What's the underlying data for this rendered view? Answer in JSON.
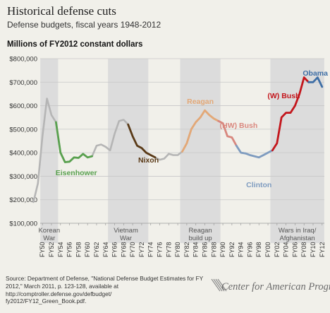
{
  "header": {
    "title": "Historical defense cuts",
    "subtitle": "Defense budgets, fiscal years 1948-2012",
    "units": "Millions of FY2012 constant dollars"
  },
  "footer": {
    "source": "Source: Department of Defense, \"National Defense Budget Estimates for FY 2012,\" March 2011, p. 123-128, available at http://comptroller.defense.gov/defbudget/",
    "source_url_tail": "fy2012/FY12_Green_Book.pdf.",
    "logo": "Center for American Progress"
  },
  "colors": {
    "background": "#f1f0ea",
    "shade": "#dcdcdc",
    "base_line": "#b5b5b5",
    "eisenhower": "#59a14f",
    "nixon": "#5a3a17",
    "reagan": "#e3a877",
    "hw_bush": "#d9877e",
    "clinton": "#7f9cc0",
    "w_bush": "#c4161c",
    "obama": "#3f6fa6"
  },
  "chart_data": {
    "type": "line",
    "title": "Historical defense cuts",
    "subtitle": "Defense budgets, fiscal years 1948-2012",
    "ylabel": "Millions of FY2012 constant dollars",
    "ylim": [
      100000,
      800000
    ],
    "yticks": [
      "$100,000",
      "$200,000",
      "$300,000",
      "$400,000",
      "$500,000",
      "$600,000",
      "$700,000",
      "$800,000"
    ],
    "ytick_values": [
      100000,
      200000,
      300000,
      400000,
      500000,
      600000,
      700000,
      800000
    ],
    "xlim": [
      1948,
      2012
    ],
    "xticks": [
      "FY50",
      "FY52",
      "FY54",
      "FY56",
      "FY58",
      "FY60",
      "FY62",
      "FY64",
      "FY66",
      "FY68",
      "FY70",
      "FY72",
      "FY74",
      "FY76",
      "FY78",
      "FY80",
      "FY82",
      "FY84",
      "FY86",
      "FY88",
      "FY90",
      "FY92",
      "FY94",
      "FY96",
      "FY98",
      "FY00",
      "FY02",
      "FY04",
      "FY06",
      "FY08",
      "FY10",
      "FY12"
    ],
    "xtick_years": [
      1950,
      1952,
      1954,
      1956,
      1958,
      1960,
      1962,
      1964,
      1966,
      1968,
      1970,
      1972,
      1974,
      1976,
      1978,
      1980,
      1982,
      1984,
      1986,
      1988,
      1990,
      1992,
      1994,
      1996,
      1998,
      2000,
      2002,
      2004,
      2006,
      2008,
      2010,
      2012
    ],
    "grid": true,
    "x": [
      1948,
      1949,
      1950,
      1951,
      1952,
      1953,
      1954,
      1955,
      1956,
      1957,
      1958,
      1959,
      1960,
      1961,
      1962,
      1963,
      1964,
      1965,
      1966,
      1967,
      1968,
      1969,
      1970,
      1971,
      1972,
      1973,
      1974,
      1975,
      1976,
      1977,
      1978,
      1979,
      1980,
      1981,
      1982,
      1983,
      1984,
      1985,
      1986,
      1987,
      1988,
      1989,
      1990,
      1991,
      1992,
      1993,
      1994,
      1995,
      1996,
      1997,
      1998,
      1999,
      2000,
      2001,
      2002,
      2003,
      2004,
      2005,
      2006,
      2007,
      2008,
      2009,
      2010,
      2011,
      2012
    ],
    "values": [
      190000,
      270000,
      470000,
      630000,
      560000,
      530000,
      400000,
      360000,
      362000,
      380000,
      378000,
      395000,
      380000,
      385000,
      430000,
      435000,
      425000,
      410000,
      480000,
      535000,
      540000,
      520000,
      470000,
      430000,
      420000,
      400000,
      390000,
      380000,
      370000,
      375000,
      395000,
      390000,
      390000,
      405000,
      440000,
      500000,
      530000,
      550000,
      580000,
      560000,
      545000,
      535000,
      525000,
      470000,
      465000,
      430000,
      400000,
      397000,
      390000,
      385000,
      380000,
      390000,
      400000,
      410000,
      440000,
      550000,
      570000,
      570000,
      600000,
      650000,
      720000,
      700000,
      700000,
      720000,
      680000
    ],
    "shaded_periods": [
      {
        "label": [
          "Korean",
          "War"
        ],
        "from": 1950,
        "to": 1953
      },
      {
        "label": [
          "Vietnam",
          "War"
        ],
        "from": 1965,
        "to": 1973
      },
      {
        "label": [
          "Reagan",
          "build up"
        ],
        "from": 1981,
        "to": 1989
      },
      {
        "label": [
          "Wars in Iraq/",
          "Afghanistan"
        ],
        "from": 2001,
        "to": 2012
      }
    ],
    "highlighted_segments": [
      {
        "name": "Eisenhower",
        "from": 1953,
        "to": 1961,
        "color": "#59a14f"
      },
      {
        "name": "Nixon",
        "from": 1969,
        "to": 1975,
        "color": "#5a3a17"
      },
      {
        "name": "Reagan",
        "from": 1981,
        "to": 1989,
        "color": "#e3a877"
      },
      {
        "name": "(HW) Bush",
        "from": 1989,
        "to": 1993,
        "color": "#d9877e"
      },
      {
        "name": "Clinton",
        "from": 1993,
        "to": 2001,
        "color": "#7f9cc0"
      },
      {
        "name": "(W) Bush",
        "from": 2001,
        "to": 2009,
        "color": "#c4161c"
      },
      {
        "name": "Obama",
        "from": 2009,
        "to": 2012,
        "color": "#3f6fa6"
      }
    ]
  }
}
